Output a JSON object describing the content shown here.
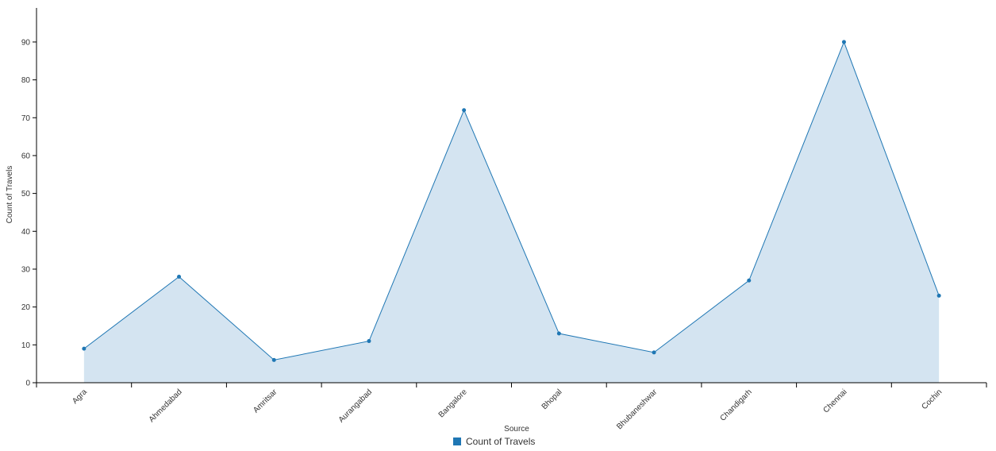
{
  "chart_data": {
    "type": "area",
    "x_label": "Source",
    "y_label": "Count of Travels",
    "categories": [
      "Agra",
      "Ahmedabad",
      "Amritsar",
      "Aurangabad",
      "Bangalore",
      "Bhopal",
      "Bhubaneshwar",
      "Chandigarh",
      "Chennai",
      "Cochin"
    ],
    "series": [
      {
        "name": "Count of Travels",
        "color": "#1f77b4",
        "fill": "#d4e4f1",
        "values": [
          9,
          28,
          6,
          11,
          72,
          13,
          8,
          27,
          90,
          23
        ]
      }
    ],
    "ylim": [
      0,
      99
    ],
    "yticks": [
      0,
      10,
      20,
      30,
      40,
      50,
      60,
      70,
      80,
      90
    ],
    "grid": false,
    "legend": "bottom"
  }
}
